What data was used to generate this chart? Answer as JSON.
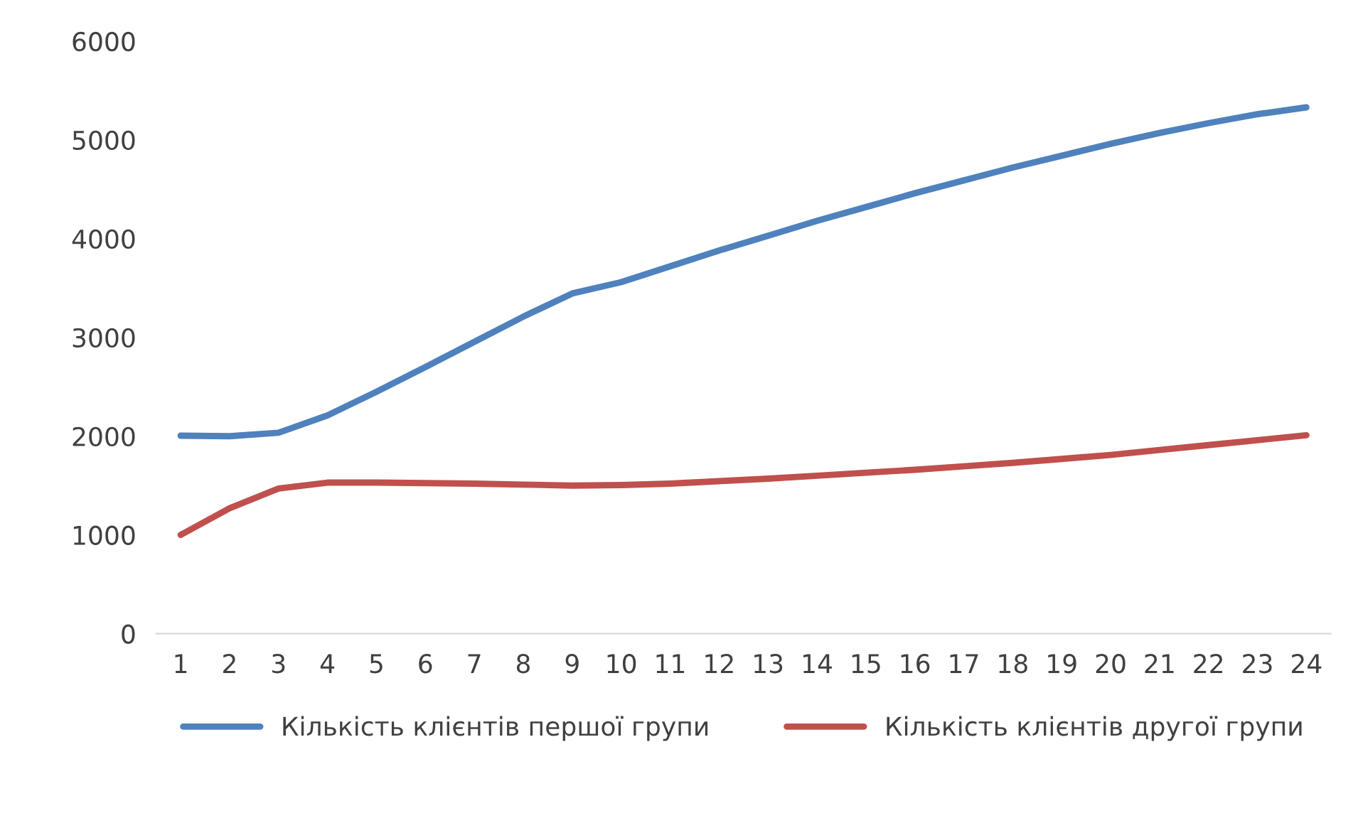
{
  "chart_data": {
    "type": "line",
    "categories": [
      "1",
      "2",
      "3",
      "4",
      "5",
      "6",
      "7",
      "8",
      "9",
      "10",
      "11",
      "12",
      "13",
      "14",
      "15",
      "16",
      "17",
      "18",
      "19",
      "20",
      "21",
      "22",
      "23",
      "24"
    ],
    "series": [
      {
        "name": "Кількість клієнтів першої групи",
        "color": "#4f81bd",
        "values": [
          2005,
          2000,
          2035,
          2210,
          2450,
          2700,
          2955,
          3210,
          3445,
          3560,
          3720,
          3880,
          4030,
          4180,
          4320,
          4460,
          4590,
          4720,
          4840,
          4960,
          5070,
          5170,
          5260,
          5330
        ]
      },
      {
        "name": "Кількість клієнтів другої групи",
        "color": "#c0504d",
        "values": [
          1000,
          1270,
          1470,
          1530,
          1530,
          1525,
          1520,
          1510,
          1500,
          1505,
          1520,
          1545,
          1570,
          1600,
          1630,
          1660,
          1695,
          1730,
          1770,
          1810,
          1860,
          1910,
          1960,
          2010
        ]
      }
    ],
    "ylim": [
      0,
      6000
    ],
    "yticks": [
      0,
      1000,
      2000,
      3000,
      4000,
      5000,
      6000
    ],
    "grid": false,
    "legend": "bottom",
    "marker": "none",
    "line_style": "solid"
  }
}
